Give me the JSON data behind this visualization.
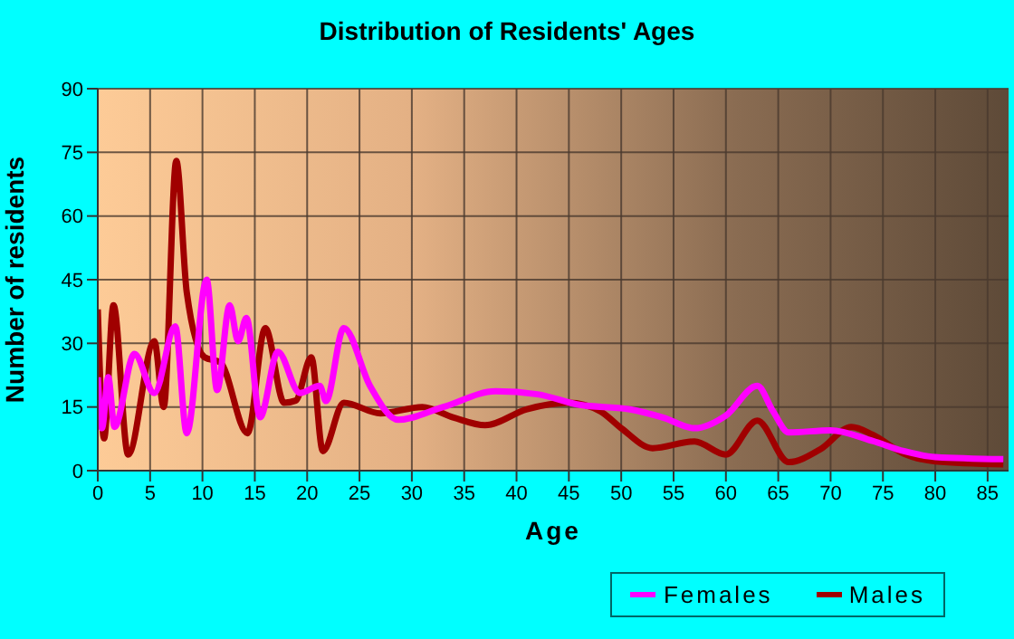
{
  "chart_data": {
    "type": "line",
    "title": "Distribution of Residents' Ages",
    "xlabel": "Age",
    "ylabel": "Number of residents",
    "xlim": [
      0,
      87
    ],
    "xticks": [
      0,
      5,
      10,
      15,
      20,
      25,
      30,
      35,
      40,
      45,
      50,
      55,
      60,
      65,
      70,
      75,
      80,
      85
    ],
    "ylim": [
      0,
      90
    ],
    "yticks": [
      0,
      15,
      30,
      45,
      60,
      75,
      90
    ],
    "grid": true,
    "legend": "bottom right",
    "marker": "none",
    "line_style": "solid",
    "series": [
      {
        "name": "Males",
        "color": "#a00000",
        "x": [
          0,
          0.6,
          1.5,
          2.9,
          5.4,
          6.3,
          7.5,
          8.5,
          10.2,
          11.7,
          14.3,
          16,
          17.8,
          18.9,
          20.4,
          21.5,
          23.5,
          27,
          31,
          34,
          37,
          41,
          45,
          48,
          50,
          53,
          57,
          60,
          63,
          66,
          69,
          72,
          74,
          77,
          80,
          86.5
        ],
        "values": [
          38,
          7.6,
          39,
          3.8,
          30.5,
          15,
          73,
          42,
          26.7,
          25.5,
          8.8,
          33.6,
          16,
          16.5,
          26.7,
          4.6,
          16,
          13.5,
          15,
          12.5,
          10.7,
          14.5,
          16,
          14,
          10,
          5.3,
          6.9,
          3.8,
          11.8,
          2,
          5,
          10.3,
          8.5,
          4,
          2.2,
          1.5
        ]
      },
      {
        "name": "Females",
        "color": "#ff00ff",
        "x": [
          0,
          0.4,
          1,
          1.6,
          3.5,
          5.4,
          7.4,
          8.5,
          10.4,
          11.4,
          12.6,
          13.4,
          14.2,
          15.5,
          17.2,
          19.3,
          21.2,
          21.8,
          23.5,
          26,
          28.7,
          33,
          38,
          42,
          46,
          50.7,
          54,
          57,
          60,
          63,
          64.5,
          66,
          70,
          74,
          77,
          80,
          86.5
        ],
        "values": [
          22,
          10,
          22,
          10.3,
          27.5,
          18.3,
          34,
          8.8,
          45,
          19,
          39,
          30.5,
          36,
          12.6,
          28,
          18.3,
          20,
          16.4,
          33.6,
          20,
          12,
          15,
          18.7,
          18,
          15.5,
          14.5,
          12.5,
          10,
          13,
          20,
          14,
          9,
          9.5,
          7,
          4.6,
          3.2,
          2.7
        ]
      }
    ]
  }
}
